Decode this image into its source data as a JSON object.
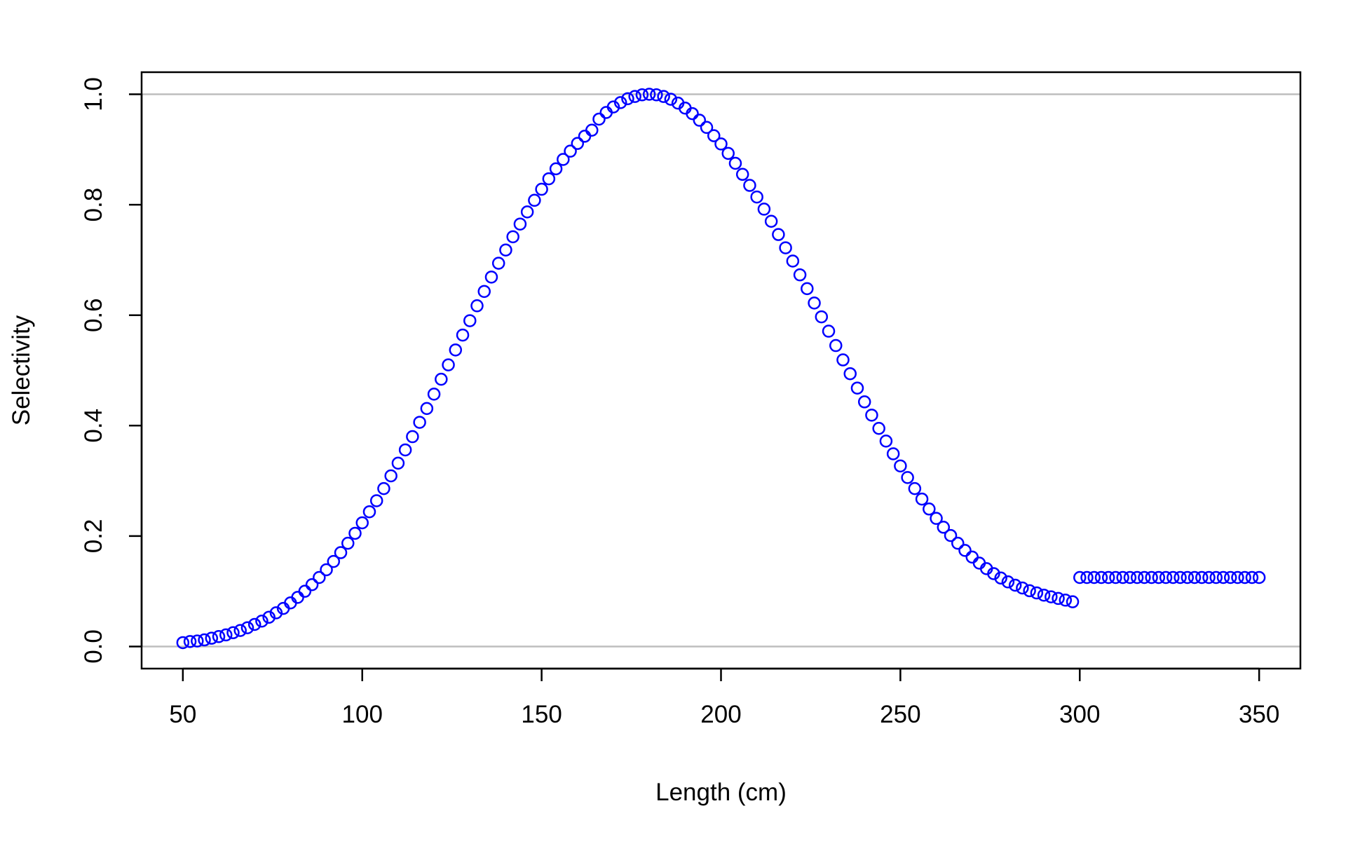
{
  "chart_data": {
    "type": "scatter",
    "title": "",
    "xlabel": "Length (cm)",
    "ylabel": "Selectivity",
    "xlim": [
      38.5,
      361.5
    ],
    "ylim": [
      -0.04,
      1.04
    ],
    "xticks": [
      50,
      100,
      150,
      200,
      250,
      300,
      350
    ],
    "yticks": [
      0.0,
      0.2,
      0.4,
      0.6,
      0.8,
      1.0
    ],
    "ytick_labels": [
      "0.0",
      "0.2",
      "0.4",
      "0.6",
      "0.8",
      "1.0"
    ],
    "reference_lines": [
      0,
      1
    ],
    "reference_line_color": "#bebebe",
    "grid": false,
    "legend": "none",
    "point_style": "open circle",
    "point_color": "#0000ff",
    "series": [
      {
        "x": [
          50,
          52,
          54,
          56,
          58,
          60,
          62,
          64,
          66,
          68,
          70,
          72,
          74,
          76,
          78,
          80,
          82,
          84,
          86,
          88,
          90,
          92,
          94,
          96,
          98,
          100,
          102,
          104,
          106,
          108,
          110,
          112,
          114,
          116,
          118,
          120,
          122,
          124,
          126,
          128,
          130,
          132,
          134,
          136,
          138,
          140,
          142,
          144,
          146,
          148,
          150,
          152,
          154,
          156,
          158,
          160,
          162,
          164,
          166,
          168,
          170,
          172,
          174,
          176,
          178,
          180,
          182,
          184,
          186,
          188,
          190,
          192,
          194,
          196,
          198,
          200,
          202,
          204,
          206,
          208,
          210,
          212,
          214,
          216,
          218,
          220,
          222,
          224,
          226,
          228,
          230,
          232,
          234,
          236,
          238,
          240,
          242,
          244,
          246,
          248,
          250,
          252,
          254,
          256,
          258,
          260,
          262,
          264,
          266,
          268,
          270,
          272,
          274,
          276,
          278,
          280,
          282,
          284,
          286,
          288,
          290,
          292,
          294,
          296,
          298,
          300,
          302,
          304,
          306,
          308,
          310,
          312,
          314,
          316,
          318,
          320,
          322,
          324,
          326,
          328,
          330,
          332,
          334,
          336,
          338,
          340,
          342,
          344,
          346,
          348,
          350
        ],
        "y": [
          0.007,
          0.009,
          0.01,
          0.012,
          0.015,
          0.018,
          0.021,
          0.025,
          0.029,
          0.034,
          0.04,
          0.046,
          0.053,
          0.061,
          0.069,
          0.079,
          0.089,
          0.1,
          0.112,
          0.125,
          0.139,
          0.154,
          0.17,
          0.187,
          0.205,
          0.224,
          0.244,
          0.264,
          0.286,
          0.309,
          0.332,
          0.356,
          0.38,
          0.406,
          0.431,
          0.457,
          0.484,
          0.51,
          0.537,
          0.564,
          0.59,
          0.617,
          0.643,
          0.669,
          0.694,
          0.718,
          0.742,
          0.765,
          0.787,
          0.808,
          0.828,
          0.847,
          0.865,
          0.882,
          0.897,
          0.911,
          0.924,
          0.935,
          0.955,
          0.967,
          0.977,
          0.985,
          0.992,
          0.996,
          0.999,
          1.0,
          0.999,
          0.996,
          0.991,
          0.984,
          0.975,
          0.965,
          0.953,
          0.94,
          0.925,
          0.91,
          0.893,
          0.875,
          0.855,
          0.835,
          0.814,
          0.792,
          0.77,
          0.746,
          0.722,
          0.698,
          0.673,
          0.648,
          0.622,
          0.597,
          0.571,
          0.545,
          0.519,
          0.494,
          0.468,
          0.443,
          0.419,
          0.395,
          0.372,
          0.349,
          0.327,
          0.306,
          0.286,
          0.267,
          0.249,
          0.232,
          0.216,
          0.201,
          0.187,
          0.174,
          0.162,
          0.151,
          0.141,
          0.132,
          0.124,
          0.117,
          0.111,
          0.106,
          0.101,
          0.097,
          0.093,
          0.09,
          0.087,
          0.084,
          0.081,
          0.125,
          0.125,
          0.125,
          0.125,
          0.125,
          0.125,
          0.125,
          0.125,
          0.125,
          0.125,
          0.125,
          0.125,
          0.125,
          0.125,
          0.125,
          0.125,
          0.125,
          0.125,
          0.125,
          0.125,
          0.125,
          0.125,
          0.125,
          0.125,
          0.125,
          0.125
        ]
      }
    ]
  }
}
